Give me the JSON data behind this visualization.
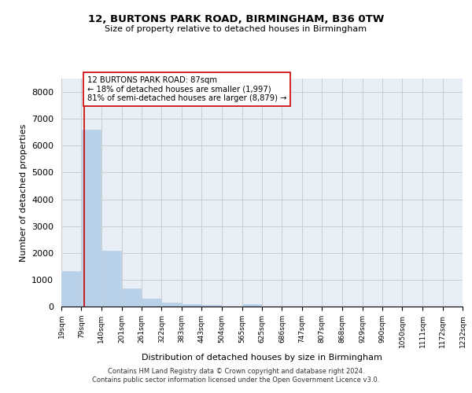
{
  "title_line1": "12, BURTONS PARK ROAD, BIRMINGHAM, B36 0TW",
  "title_line2": "Size of property relative to detached houses in Birmingham",
  "xlabel": "Distribution of detached houses by size in Birmingham",
  "ylabel": "Number of detached properties",
  "bar_color": "#b8d0e8",
  "grid_color": "#cccccc",
  "bg_color": "#e8eef6",
  "property_line_color": "#cc0000",
  "property_value": 87,
  "annotation_text": "12 BURTONS PARK ROAD: 87sqm\n← 18% of detached houses are smaller (1,997)\n81% of semi-detached houses are larger (8,879) →",
  "bin_edges": [
    19,
    79,
    140,
    201,
    261,
    322,
    383,
    443,
    504,
    565,
    625,
    686,
    747,
    807,
    868,
    929,
    990,
    1050,
    1111,
    1172,
    1232
  ],
  "bin_labels": [
    "19sqm",
    "79sqm",
    "140sqm",
    "201sqm",
    "261sqm",
    "322sqm",
    "383sqm",
    "443sqm",
    "504sqm",
    "565sqm",
    "625sqm",
    "686sqm",
    "747sqm",
    "807sqm",
    "868sqm",
    "929sqm",
    "990sqm",
    "1050sqm",
    "1111sqm",
    "1172sqm",
    "1232sqm"
  ],
  "bar_heights": [
    1320,
    6600,
    2070,
    680,
    290,
    140,
    80,
    60,
    10,
    100,
    0,
    0,
    0,
    0,
    0,
    0,
    0,
    0,
    0,
    0
  ],
  "ylim": [
    0,
    8500
  ],
  "yticks": [
    0,
    1000,
    2000,
    3000,
    4000,
    5000,
    6000,
    7000,
    8000
  ],
  "footer_line1": "Contains HM Land Registry data © Crown copyright and database right 2024.",
  "footer_line2": "Contains public sector information licensed under the Open Government Licence v3.0."
}
